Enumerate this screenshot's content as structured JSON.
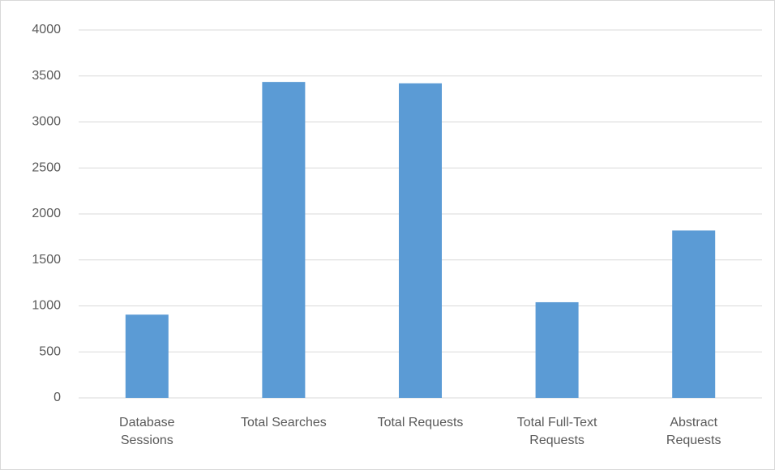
{
  "chart_data": {
    "type": "bar",
    "categories": [
      "Database Sessions",
      "Total Searches",
      "Total Requests",
      "Total Full-Text Requests",
      "Abstract Requests"
    ],
    "values": [
      905,
      3435,
      3420,
      1040,
      1820
    ],
    "color": "#5b9bd5",
    "ylim": [
      0,
      4000
    ],
    "yticks": [
      0,
      500,
      1000,
      1500,
      2000,
      2500,
      3000,
      3500,
      4000
    ],
    "grid": true
  }
}
